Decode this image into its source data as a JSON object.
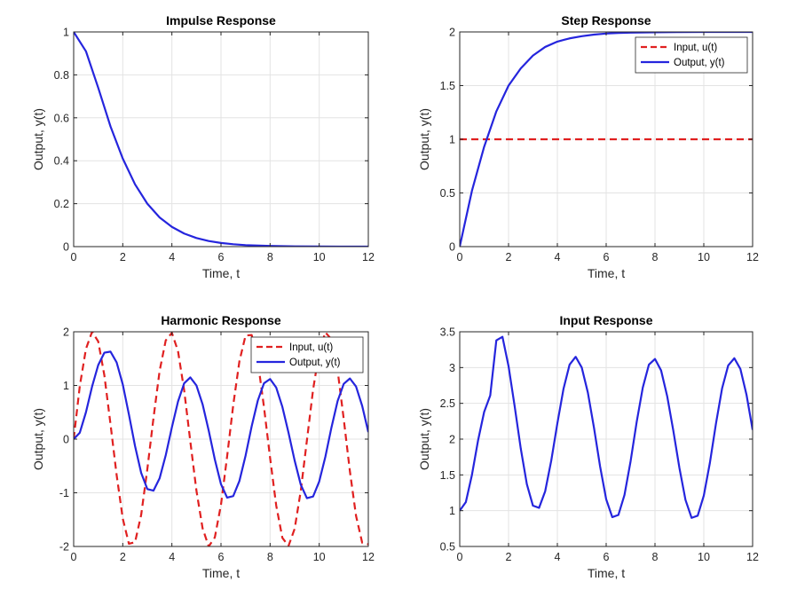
{
  "chart_data": [
    {
      "type": "line",
      "title": "Impulse Response",
      "xlabel": "Time, t",
      "ylabel": "Output, y(t)",
      "xlim": [
        0,
        12
      ],
      "ylim": [
        0,
        1
      ],
      "xticks": [
        0,
        2,
        4,
        6,
        8,
        10,
        12
      ],
      "xtick_labels": [
        "0",
        "2",
        "4",
        "6",
        "8",
        "10",
        "12"
      ],
      "yticks": [
        0,
        0.2,
        0.4,
        0.6,
        0.8,
        1
      ],
      "ytick_labels": [
        "0",
        "0.2",
        "0.4",
        "0.6",
        "0.8",
        "1"
      ],
      "grid": true,
      "legend": null,
      "series": [
        {
          "name": "",
          "color": "#2525dd",
          "dash": "solid",
          "x": [
            0,
            0.5,
            1,
            1.5,
            2,
            2.5,
            3,
            3.5,
            4,
            4.5,
            5,
            5.5,
            6,
            6.5,
            7,
            8,
            9,
            10,
            11,
            12
          ],
          "y": [
            1,
            0.91,
            0.74,
            0.56,
            0.41,
            0.29,
            0.2,
            0.136,
            0.092,
            0.061,
            0.04,
            0.026,
            0.017,
            0.011,
            0.007,
            0.003,
            0.001,
            0.0005,
            0.0002,
            0.0001
          ]
        }
      ]
    },
    {
      "type": "line",
      "title": "Step Response",
      "xlabel": "Time, t",
      "ylabel": "Output, y(t)",
      "xlim": [
        0,
        12
      ],
      "ylim": [
        0,
        2
      ],
      "xticks": [
        0,
        2,
        4,
        6,
        8,
        10,
        12
      ],
      "xtick_labels": [
        "0",
        "2",
        "4",
        "6",
        "8",
        "10",
        "12"
      ],
      "yticks": [
        0,
        0.5,
        1,
        1.5,
        2
      ],
      "ytick_labels": [
        "0",
        "0.5",
        "1",
        "1.5",
        "2"
      ],
      "grid": true,
      "legend": "top-right",
      "series": [
        {
          "name": "Input, u(t)",
          "color": "#e02020",
          "dash": "dashed",
          "x": [
            0,
            12
          ],
          "y": [
            1,
            1
          ]
        },
        {
          "name": "Output, y(t)",
          "color": "#2525dd",
          "dash": "solid",
          "x": [
            0,
            0.5,
            1,
            1.5,
            2,
            2.5,
            3,
            3.5,
            4,
            4.5,
            5,
            5.5,
            6,
            6.5,
            7,
            8,
            9,
            10,
            11,
            12
          ],
          "y": [
            0,
            0.52,
            0.93,
            1.26,
            1.5,
            1.66,
            1.78,
            1.86,
            1.91,
            1.94,
            1.96,
            1.975,
            1.985,
            1.99,
            1.994,
            1.997,
            1.999,
            2,
            2,
            2
          ]
        }
      ]
    },
    {
      "type": "line",
      "title": "Harmonic Response",
      "xlabel": "Time, t",
      "ylabel": "Output, y(t)",
      "xlim": [
        0,
        12
      ],
      "ylim": [
        -2,
        2
      ],
      "xticks": [
        0,
        2,
        4,
        6,
        8,
        10,
        12
      ],
      "xtick_labels": [
        "0",
        "2",
        "4",
        "6",
        "8",
        "10",
        "12"
      ],
      "yticks": [
        -2,
        -1,
        0,
        1,
        2
      ],
      "ytick_labels": [
        "-2",
        "-1",
        "0",
        "1",
        "2"
      ],
      "grid": true,
      "legend": "top-right",
      "series": [
        {
          "name": "Input, u(t)",
          "color": "#e02020",
          "dash": "dashed",
          "x": [
            0,
            0.25,
            0.5,
            0.75,
            1,
            1.25,
            1.5,
            1.75,
            2,
            2.25,
            2.5,
            2.75,
            3,
            3.25,
            3.5,
            3.75,
            4,
            4.25,
            4.5,
            4.75,
            5,
            5.25,
            5.5,
            5.75,
            6,
            6.25,
            6.5,
            6.75,
            7,
            7.25,
            7.5,
            7.75,
            8,
            8.25,
            8.5,
            8.75,
            9,
            9.25,
            9.5,
            9.75,
            10,
            10.25,
            10.5,
            10.75,
            11,
            11.25,
            11.5,
            11.75,
            12
          ],
          "y": [
            0,
            0.99,
            1.68,
            2.0,
            1.82,
            1.19,
            0.28,
            -0.67,
            -1.48,
            -1.95,
            -1.92,
            -1.41,
            -0.56,
            0.39,
            1.27,
            1.84,
            1.98,
            1.64,
            0.91,
            -0.04,
            -0.96,
            -1.66,
            -2.0,
            -1.83,
            -1.22,
            -0.32,
            0.64,
            1.45,
            1.93,
            1.94,
            1.45,
            0.6,
            -0.35,
            -1.24,
            -1.84,
            -1.99,
            -1.67,
            -0.96,
            -0.02,
            0.92,
            1.63,
            1.99,
            1.86,
            1.28,
            0.37,
            -0.6,
            -1.43,
            -1.93,
            -1.96
          ]
        },
        {
          "name": "Output, y(t)",
          "color": "#2525dd",
          "dash": "solid",
          "x": [
            0,
            0.25,
            0.5,
            0.75,
            1,
            1.25,
            1.5,
            1.75,
            2,
            2.25,
            2.5,
            2.75,
            3,
            3.25,
            3.5,
            3.75,
            4,
            4.25,
            4.5,
            4.75,
            5,
            5.25,
            5.5,
            5.75,
            6,
            6.25,
            6.5,
            6.75,
            7,
            7.25,
            7.5,
            7.75,
            8,
            8.25,
            8.5,
            8.75,
            9,
            9.25,
            9.5,
            9.75,
            10,
            10.25,
            10.5,
            10.75,
            11,
            11.25,
            11.5,
            11.75,
            12
          ],
          "y": [
            0,
            0.12,
            0.5,
            0.98,
            1.38,
            1.61,
            1.63,
            1.43,
            1.02,
            0.46,
            -0.13,
            -0.63,
            -0.93,
            -0.96,
            -0.73,
            -0.3,
            0.22,
            0.7,
            1.04,
            1.15,
            1.0,
            0.65,
            0.16,
            -0.38,
            -0.84,
            -1.09,
            -1.06,
            -0.78,
            -0.31,
            0.24,
            0.72,
            1.04,
            1.12,
            0.96,
            0.6,
            0.12,
            -0.4,
            -0.85,
            -1.1,
            -1.07,
            -0.79,
            -0.33,
            0.22,
            0.71,
            1.03,
            1.13,
            0.98,
            0.62,
            0.13
          ]
        }
      ]
    },
    {
      "type": "line",
      "title": "Input Response",
      "xlabel": "Time, t",
      "ylabel": "Output, y(t)",
      "xlim": [
        0,
        12
      ],
      "ylim": [
        0.5,
        3.5
      ],
      "xticks": [
        0,
        2,
        4,
        6,
        8,
        10,
        12
      ],
      "xtick_labels": [
        "0",
        "2",
        "4",
        "6",
        "8",
        "10",
        "12"
      ],
      "yticks": [
        0.5,
        1,
        1.5,
        2,
        2.5,
        3,
        3.5
      ],
      "ytick_labels": [
        "0.5",
        "1",
        "1.5",
        "2",
        "2.5",
        "3",
        "3.5"
      ],
      "grid": true,
      "legend": null,
      "series": [
        {
          "name": "",
          "color": "#2525dd",
          "dash": "solid",
          "x": [
            0,
            0.25,
            0.5,
            0.75,
            1,
            1.25,
            1.5,
            1.75,
            2,
            2.25,
            2.5,
            2.75,
            3,
            3.25,
            3.5,
            3.75,
            4,
            4.25,
            4.5,
            4.75,
            5,
            5.25,
            5.5,
            5.75,
            6,
            6.25,
            6.5,
            6.75,
            7,
            7.25,
            7.5,
            7.75,
            8,
            8.25,
            8.5,
            8.75,
            9,
            9.25,
            9.5,
            9.75,
            10,
            10.25,
            10.5,
            10.75,
            11,
            11.25,
            11.5,
            11.75,
            12
          ],
          "y": [
            1,
            1.12,
            1.5,
            1.98,
            2.38,
            2.61,
            3.38,
            3.43,
            3.02,
            2.46,
            1.87,
            1.37,
            1.07,
            1.04,
            1.27,
            1.7,
            2.22,
            2.7,
            3.04,
            3.15,
            3.0,
            2.65,
            2.16,
            1.62,
            1.16,
            0.91,
            0.94,
            1.22,
            1.69,
            2.24,
            2.72,
            3.04,
            3.12,
            2.96,
            2.6,
            2.12,
            1.6,
            1.15,
            0.9,
            0.93,
            1.21,
            1.67,
            2.22,
            2.71,
            3.03,
            3.13,
            2.98,
            2.62,
            2.13
          ]
        }
      ]
    }
  ]
}
